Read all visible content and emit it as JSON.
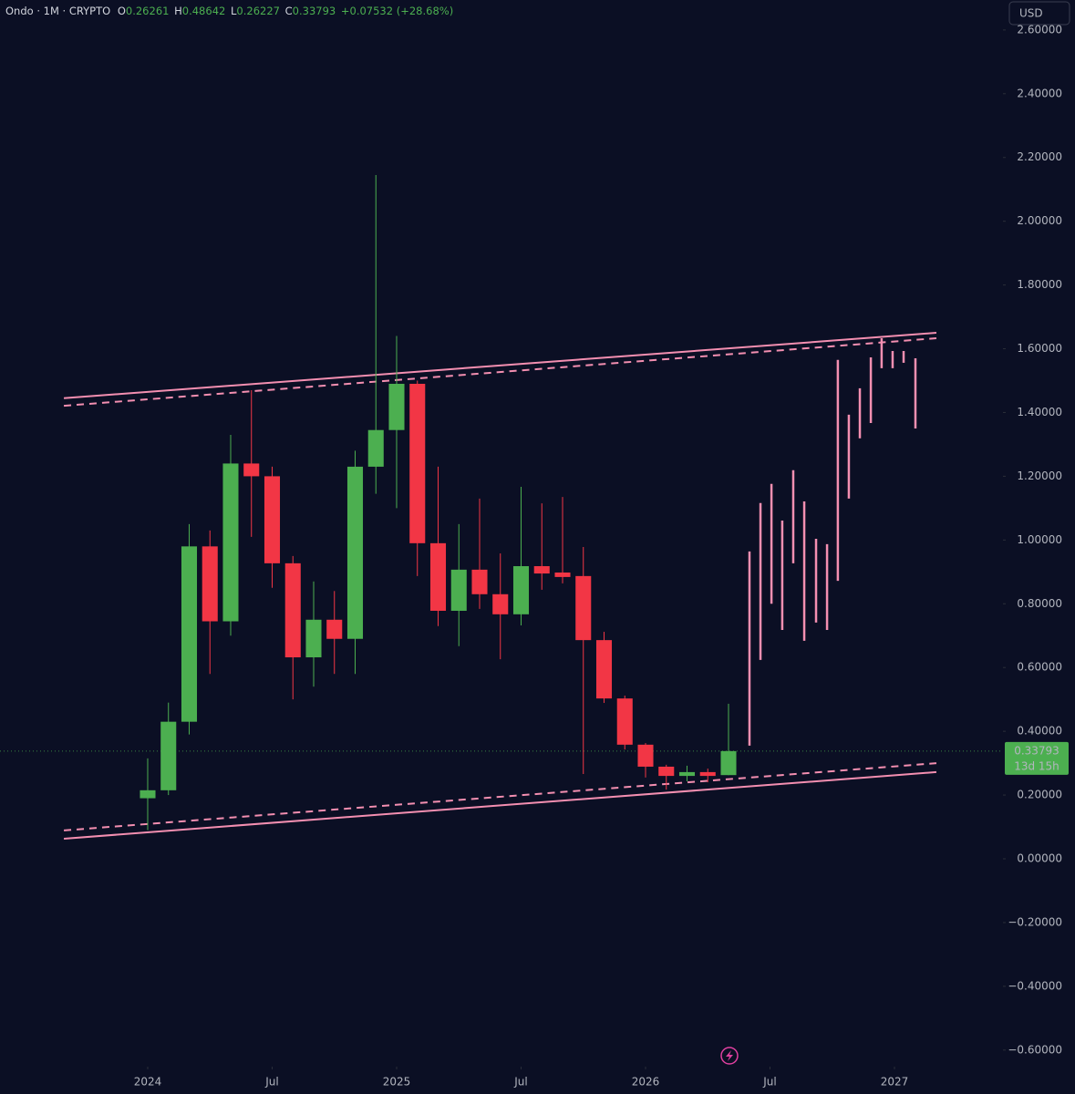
{
  "chart_data": {
    "type": "candlestick",
    "symbol": "Ondo · 1M · CRYPTO",
    "ohlc_labels": [
      "O",
      "H",
      "L",
      "C"
    ],
    "change": "+0.07532 (+28.68%)",
    "currency": "USD",
    "countdown": "13d 15h",
    "up_color": "#4caf50",
    "down_color": "#f23645",
    "drawing_color": "#f48fb1",
    "xlim": [
      -7.12,
      41.23
    ],
    "xticks": [
      {
        "value": 0,
        "label": "2024"
      },
      {
        "value": 6,
        "label": "Jul"
      },
      {
        "value": 12,
        "label": "2025"
      },
      {
        "value": 18,
        "label": "Jul"
      },
      {
        "value": 24,
        "label": "2026"
      },
      {
        "value": 30,
        "label": "Jul"
      },
      {
        "value": 36,
        "label": "2027"
      }
    ],
    "ylim": [
      -0.652,
      2.694
    ],
    "yticks": [
      {
        "value": 2.6,
        "label": "2.60000"
      },
      {
        "value": 2.4,
        "label": "2.40000"
      },
      {
        "value": 2.2,
        "label": "2.20000"
      },
      {
        "value": 2.0,
        "label": "2.00000"
      },
      {
        "value": 1.8,
        "label": "1.80000"
      },
      {
        "value": 1.6,
        "label": "1.60000"
      },
      {
        "value": 1.4,
        "label": "1.40000"
      },
      {
        "value": 1.2,
        "label": "1.20000"
      },
      {
        "value": 1.0,
        "label": "1.00000"
      },
      {
        "value": 0.8,
        "label": "0.80000"
      },
      {
        "value": 0.6,
        "label": "0.60000"
      },
      {
        "value": 0.4,
        "label": "0.40000"
      },
      {
        "value": 0.2,
        "label": "0.20000"
      },
      {
        "value": 0,
        "label": "0.00000"
      },
      {
        "value": -0.2,
        "label": "−0.20000"
      },
      {
        "value": -0.4,
        "label": "−0.40000"
      },
      {
        "value": -0.6,
        "label": "−0.60000"
      }
    ],
    "open": [
      0.19,
      0.215,
      0.43,
      0.98,
      0.745,
      1.24,
      1.2,
      0.927,
      0.632,
      0.75,
      0.69,
      1.23,
      1.345,
      1.49,
      0.99,
      0.778,
      0.907,
      0.83,
      0.767,
      0.918,
      0.898,
      0.887,
      0.686,
      0.503,
      0.358,
      0.289,
      0.26,
      0.272,
      0.26261
    ],
    "high": [
      0.315,
      0.49,
      1.05,
      1.03,
      1.33,
      1.47,
      1.23,
      0.95,
      0.87,
      0.84,
      1.28,
      2.145,
      1.64,
      1.5,
      1.23,
      1.05,
      1.13,
      0.958,
      1.167,
      1.115,
      1.135,
      0.978,
      0.712,
      0.512,
      0.363,
      0.295,
      0.292,
      0.283,
      0.48642
    ],
    "low": [
      0.09,
      0.2,
      0.39,
      0.58,
      0.7,
      1.01,
      0.85,
      0.5,
      0.54,
      0.58,
      0.58,
      1.145,
      1.1,
      0.887,
      0.73,
      0.667,
      0.784,
      0.626,
      0.732,
      0.844,
      0.864,
      0.266,
      0.489,
      0.343,
      0.255,
      0.217,
      0.243,
      0.24,
      0.26227
    ],
    "close": [
      0.215,
      0.43,
      0.98,
      0.745,
      1.24,
      1.2,
      0.927,
      0.632,
      0.75,
      0.69,
      1.23,
      1.345,
      1.49,
      0.99,
      0.778,
      0.907,
      0.83,
      0.767,
      0.918,
      0.895,
      0.884,
      0.686,
      0.503,
      0.358,
      0.289,
      0.26,
      0.272,
      0.26,
      0.33793
    ],
    "projection": {
      "x": [
        29.01,
        29.54,
        30.07,
        30.59,
        31.12,
        31.65,
        32.22,
        32.75,
        33.27,
        33.8,
        34.33,
        34.86,
        35.38,
        35.91,
        36.44,
        37.01
      ],
      "high": [
        0.964,
        1.116,
        1.176,
        1.061,
        1.219,
        1.121,
        1.004,
        0.987,
        1.565,
        1.393,
        1.476,
        1.573,
        1.633,
        1.593,
        1.593,
        1.57
      ],
      "low": [
        0.355,
        0.624,
        0.8,
        0.718,
        0.927,
        0.684,
        0.741,
        0.718,
        0.872,
        1.13,
        1.319,
        1.367,
        1.539,
        1.539,
        1.556,
        1.35
      ]
    },
    "channel": [
      {
        "style": "solid",
        "x": [
          -4.04,
          38.02
        ],
        "y": [
          1.445,
          1.65
        ]
      },
      {
        "style": "dashed",
        "x": [
          -4.04,
          38.02
        ],
        "y": [
          1.421,
          1.633
        ]
      },
      {
        "style": "solid",
        "x": [
          -4.04,
          38.02
        ],
        "y": [
          0.063,
          0.272
        ]
      },
      {
        "style": "dashed",
        "x": [
          -4.04,
          38.02
        ],
        "y": [
          0.089,
          0.3
        ]
      }
    ]
  }
}
